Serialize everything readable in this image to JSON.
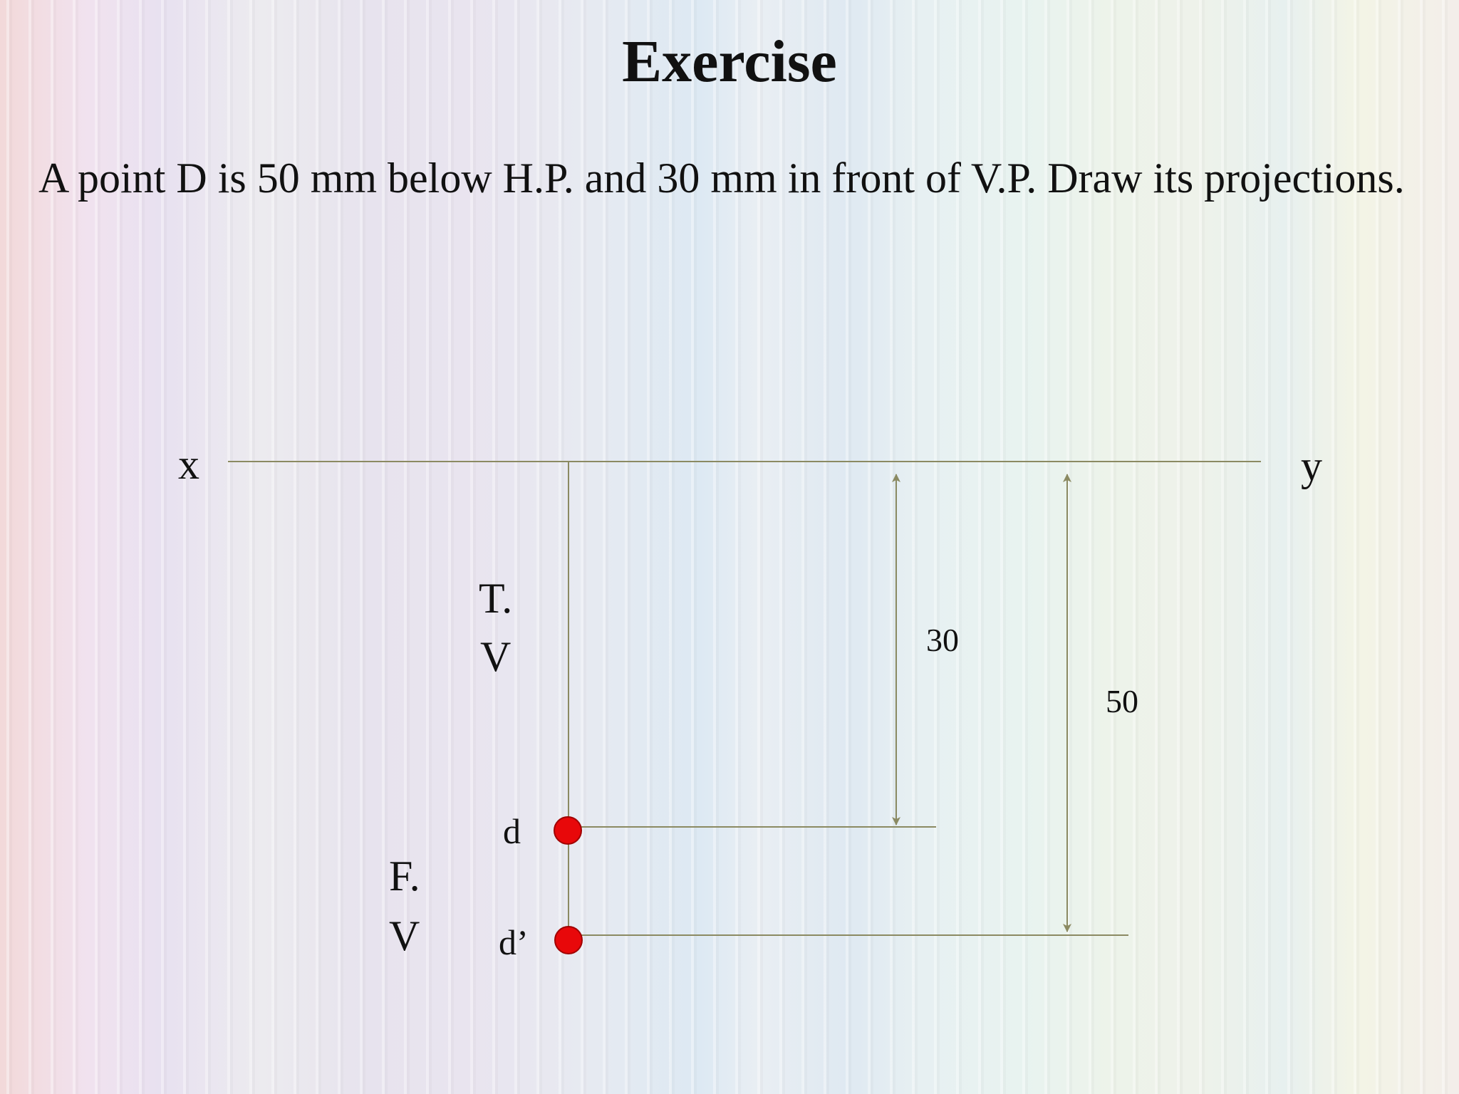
{
  "slide": {
    "title": "Exercise",
    "problem_text": "A point D is 50 mm below H.P. and 30 mm in front of V.P. Draw its projections."
  },
  "diagram": {
    "ref_line_left_label": "x",
    "ref_line_right_label": "y",
    "top_view_label_1": "T.",
    "top_view_label_2": "V",
    "front_view_label_1": "F.",
    "front_view_label_2": "V",
    "point_top_view_label": "d",
    "point_front_view_label": "d’",
    "dim_front_of_vp": "30",
    "dim_below_hp": "50",
    "colors": {
      "construction_line": "#8b8a62",
      "point_fill": "#e8080a",
      "point_stroke": "#a00000"
    }
  }
}
